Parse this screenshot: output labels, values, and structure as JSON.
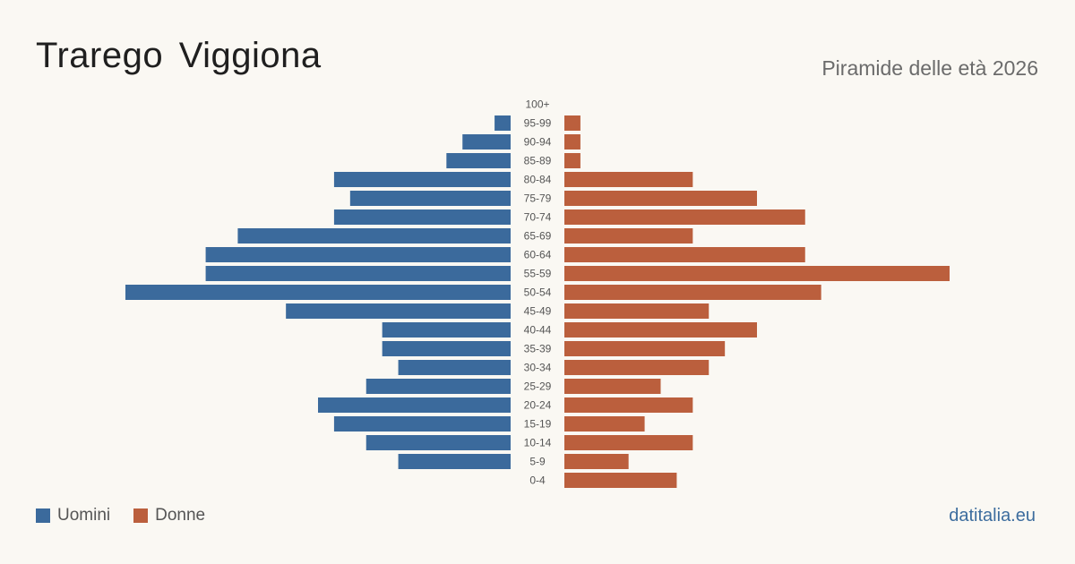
{
  "header": {
    "title": "Trarego Viggiona",
    "subtitle": "Piramide delle età 2026"
  },
  "legend": {
    "men_label": "Uomini",
    "women_label": "Donne"
  },
  "source": "datitalia.eu",
  "colors": {
    "men": "#3b6a9c",
    "women": "#bb5f3d"
  },
  "chart_data": {
    "type": "bar",
    "orientation": "horizontal-pyramid",
    "categories": [
      "100+",
      "95-99",
      "90-94",
      "85-89",
      "80-84",
      "75-79",
      "70-74",
      "65-69",
      "60-64",
      "55-59",
      "50-54",
      "45-49",
      "40-44",
      "35-39",
      "30-34",
      "25-29",
      "20-24",
      "15-19",
      "10-14",
      "5-9",
      "0-4"
    ],
    "series": [
      {
        "name": "Uomini",
        "values": [
          0,
          1,
          3,
          4,
          11,
          10,
          11,
          17,
          19,
          19,
          24,
          14,
          8,
          8,
          7,
          9,
          12,
          11,
          9,
          7,
          0
        ]
      },
      {
        "name": "Donne",
        "values": [
          0,
          1,
          1,
          1,
          8,
          12,
          15,
          8,
          15,
          24,
          16,
          9,
          12,
          10,
          9,
          6,
          8,
          5,
          8,
          4,
          7
        ]
      }
    ],
    "xlim": [
      0,
      24
    ],
    "legend_position": "bottom-left",
    "grid": false
  }
}
